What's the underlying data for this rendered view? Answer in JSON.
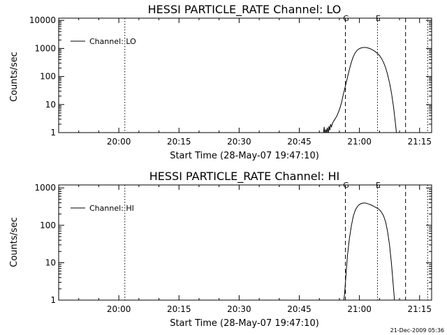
{
  "footer_timestamp": "21-Dec-2009 05:36",
  "chart_data": [
    {
      "type": "line",
      "title": "HESSI PARTICLE_RATE Channel: LO",
      "xlabel": "Start Time (28-May-07 19:47:10)",
      "ylabel": "Counts/sec",
      "yscale": "log",
      "ylim": [
        1,
        12000
      ],
      "xlim_minutes": [
        -2,
        91
      ],
      "x_tick_labels": [
        "20:00",
        "20:15",
        "20:30",
        "20:45",
        "21:00",
        "21:15"
      ],
      "x_tick_minutes": [
        13,
        28,
        43,
        58,
        73,
        88
      ],
      "y_tick_labels": [
        "1",
        "10",
        "100",
        "1000",
        "10000"
      ],
      "y_tick_values": [
        1,
        10,
        100,
        1000,
        10000
      ],
      "legend": {
        "position": "top-left",
        "entries": [
          "Channel: LO"
        ]
      },
      "markers": [
        {
          "label": "G",
          "minute": 69.5,
          "style": "dashed"
        },
        {
          "label": "E",
          "minute": 77.5,
          "style": "dotted"
        }
      ],
      "extra_lines": [
        {
          "minute": 14.5,
          "style": "dotted"
        },
        {
          "minute": 84.5,
          "style": "dashed"
        },
        {
          "minute": 90.0,
          "style": "dotted"
        }
      ],
      "series": [
        {
          "name": "Channel: LO",
          "points": [
            [
              64.0,
              0.8
            ],
            [
              64.2,
              1.6
            ],
            [
              64.4,
              0.8
            ],
            [
              64.6,
              1.3
            ],
            [
              64.8,
              1.0
            ],
            [
              65.0,
              1.5
            ],
            [
              65.2,
              0.9
            ],
            [
              65.4,
              1.7
            ],
            [
              65.6,
              1.2
            ],
            [
              65.8,
              2.0
            ],
            [
              66.0,
              1.6
            ],
            [
              66.3,
              2.2
            ],
            [
              66.6,
              2.6
            ],
            [
              67.0,
              3.2
            ],
            [
              67.4,
              4.0
            ],
            [
              67.8,
              5.5
            ],
            [
              68.2,
              8.0
            ],
            [
              68.6,
              13
            ],
            [
              69.0,
              24
            ],
            [
              69.5,
              45
            ],
            [
              70.0,
              90
            ],
            [
              70.5,
              180
            ],
            [
              71.0,
              330
            ],
            [
              71.5,
              520
            ],
            [
              72.0,
              720
            ],
            [
              72.5,
              880
            ],
            [
              73.0,
              980
            ],
            [
              73.5,
              1050
            ],
            [
              74.0,
              1080
            ],
            [
              74.5,
              1080
            ],
            [
              75.0,
              1050
            ],
            [
              75.5,
              1000
            ],
            [
              76.0,
              930
            ],
            [
              76.5,
              850
            ],
            [
              77.0,
              760
            ],
            [
              77.5,
              660
            ],
            [
              78.0,
              560
            ],
            [
              78.5,
              440
            ],
            [
              79.0,
              320
            ],
            [
              79.5,
              210
            ],
            [
              80.0,
              120
            ],
            [
              80.5,
              60
            ],
            [
              81.0,
              25
            ],
            [
              81.5,
              8
            ],
            [
              82.0,
              2
            ],
            [
              82.3,
              0.8
            ]
          ]
        }
      ]
    },
    {
      "type": "line",
      "title": "HESSI PARTICLE_RATE Channel: HI",
      "xlabel": "Start Time (28-May-07 19:47:10)",
      "ylabel": "Counts/sec",
      "yscale": "log",
      "ylim": [
        1,
        1200
      ],
      "xlim_minutes": [
        -2,
        91
      ],
      "x_tick_labels": [
        "20:00",
        "20:15",
        "20:30",
        "20:45",
        "21:00",
        "21:15"
      ],
      "x_tick_minutes": [
        13,
        28,
        43,
        58,
        73,
        88
      ],
      "y_tick_labels": [
        "1",
        "10",
        "100",
        "1000"
      ],
      "y_tick_values": [
        1,
        10,
        100,
        1000
      ],
      "legend": {
        "position": "top-left",
        "entries": [
          "Channel: HI"
        ]
      },
      "markers": [
        {
          "label": "G",
          "minute": 69.5,
          "style": "dashed"
        },
        {
          "label": "E",
          "minute": 77.5,
          "style": "dotted"
        }
      ],
      "extra_lines": [
        {
          "minute": 14.5,
          "style": "dotted"
        },
        {
          "minute": 84.5,
          "style": "dashed"
        },
        {
          "minute": 90.0,
          "style": "dotted"
        }
      ],
      "series": [
        {
          "name": "Channel: HI",
          "points": [
            [
              69.0,
              0.8
            ],
            [
              69.3,
              1.5
            ],
            [
              69.6,
              4
            ],
            [
              70.0,
              15
            ],
            [
              70.5,
              45
            ],
            [
              71.0,
              100
            ],
            [
              71.5,
              180
            ],
            [
              72.0,
              260
            ],
            [
              72.5,
              320
            ],
            [
              73.0,
              360
            ],
            [
              73.5,
              385
            ],
            [
              74.0,
              395
            ],
            [
              74.5,
              395
            ],
            [
              75.0,
              380
            ],
            [
              75.5,
              365
            ],
            [
              76.0,
              345
            ],
            [
              76.5,
              325
            ],
            [
              77.0,
              305
            ],
            [
              77.5,
              285
            ],
            [
              78.0,
              260
            ],
            [
              78.5,
              225
            ],
            [
              79.0,
              180
            ],
            [
              79.5,
              125
            ],
            [
              80.0,
              70
            ],
            [
              80.5,
              30
            ],
            [
              81.0,
              9
            ],
            [
              81.5,
              2
            ],
            [
              81.8,
              0.8
            ]
          ]
        }
      ]
    }
  ]
}
